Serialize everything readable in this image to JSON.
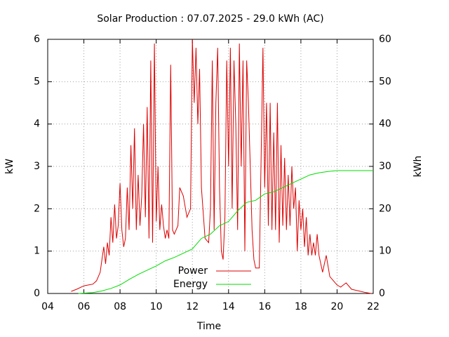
{
  "chart_data": {
    "type": "line",
    "title": "Solar Production : 07.07.2025 - 29.0 kWh (AC)",
    "xlabel": "Time",
    "ylabel": "kW",
    "y2label": "kWh",
    "xlim": [
      4,
      22
    ],
    "xticks": [
      {
        "value": 4,
        "label": "04"
      },
      {
        "value": 6,
        "label": "06"
      },
      {
        "value": 8,
        "label": "08"
      },
      10,
      12,
      14,
      16,
      18,
      20,
      22
    ],
    "ylim": [
      0,
      6
    ],
    "yticks": [
      0,
      1,
      2,
      3,
      4,
      5,
      6
    ],
    "y2lim": [
      0,
      60
    ],
    "y2ticks": [
      0,
      10,
      20,
      30,
      40,
      50,
      60
    ],
    "grid": true,
    "legend": "bottom",
    "series": [
      {
        "name": "Power",
        "color": "#dd0000",
        "x": [
          5.3,
          5.6,
          6.0,
          6.5,
          6.7,
          6.9,
          7.0,
          7.1,
          7.2,
          7.3,
          7.4,
          7.5,
          7.6,
          7.7,
          7.8,
          7.9,
          8.0,
          8.1,
          8.2,
          8.3,
          8.4,
          8.5,
          8.6,
          8.7,
          8.8,
          8.9,
          9.0,
          9.1,
          9.2,
          9.3,
          9.4,
          9.5,
          9.6,
          9.7,
          9.8,
          9.9,
          10.0,
          10.1,
          10.2,
          10.3,
          10.4,
          10.5,
          10.6,
          10.7,
          10.8,
          10.9,
          11.0,
          11.2,
          11.3,
          11.5,
          11.7,
          11.9,
          12.0,
          12.1,
          12.2,
          12.3,
          12.4,
          12.5,
          12.7,
          12.9,
          13.0,
          13.1,
          13.2,
          13.3,
          13.4,
          13.5,
          13.6,
          13.7,
          13.8,
          13.9,
          14.0,
          14.1,
          14.2,
          14.3,
          14.4,
          14.5,
          14.6,
          14.7,
          14.8,
          14.9,
          15.0,
          15.1,
          15.3,
          15.4,
          15.5,
          15.7,
          15.9,
          16.0,
          16.1,
          16.2,
          16.3,
          16.4,
          16.5,
          16.6,
          16.7,
          16.8,
          16.9,
          17.0,
          17.1,
          17.2,
          17.3,
          17.4,
          17.5,
          17.6,
          17.7,
          17.8,
          17.9,
          18.0,
          18.1,
          18.2,
          18.3,
          18.4,
          18.5,
          18.6,
          18.7,
          18.8,
          18.9,
          19.0,
          19.2,
          19.4,
          19.6,
          19.8,
          20.0,
          20.2,
          20.5,
          20.8,
          21.2,
          21.6,
          21.9
        ],
        "values": [
          0.05,
          0.1,
          0.18,
          0.22,
          0.3,
          0.5,
          0.8,
          1.1,
          0.7,
          1.2,
          0.9,
          1.8,
          1.2,
          2.1,
          1.3,
          1.6,
          2.6,
          1.5,
          1.1,
          1.3,
          2.5,
          1.5,
          3.5,
          2.0,
          3.9,
          1.5,
          2.8,
          1.6,
          2.3,
          4.0,
          1.8,
          4.4,
          1.3,
          5.5,
          1.2,
          5.9,
          1.7,
          3.0,
          1.5,
          2.1,
          1.6,
          1.3,
          1.5,
          1.3,
          5.4,
          1.5,
          1.4,
          1.6,
          2.5,
          2.3,
          1.8,
          2.0,
          6.0,
          4.5,
          5.8,
          4.0,
          5.3,
          2.5,
          1.3,
          1.2,
          2.0,
          5.5,
          1.5,
          4.5,
          5.8,
          2.5,
          1.0,
          0.8,
          1.8,
          5.5,
          3.0,
          5.8,
          2.0,
          5.5,
          4.0,
          1.5,
          5.9,
          3.0,
          5.5,
          1.0,
          5.5,
          4.5,
          1.5,
          0.8,
          0.6,
          0.6,
          5.8,
          2.5,
          4.5,
          1.6,
          4.5,
          1.5,
          3.8,
          1.5,
          4.5,
          1.2,
          3.5,
          1.6,
          3.2,
          1.5,
          2.8,
          1.6,
          3.0,
          2.0,
          2.5,
          1.0,
          2.2,
          1.5,
          2.0,
          1.1,
          1.8,
          0.9,
          1.4,
          0.9,
          1.2,
          0.9,
          1.4,
          0.9,
          0.5,
          0.9,
          0.4,
          0.3,
          0.2,
          0.15,
          0.25,
          0.1,
          0.06,
          0.02,
          0.0
        ]
      },
      {
        "name": "Energy",
        "color": "#00dd00",
        "axis": "y2",
        "x": [
          5.7,
          6.5,
          7.0,
          7.5,
          8.0,
          8.5,
          9.0,
          9.5,
          10.0,
          10.5,
          11.0,
          11.5,
          12.0,
          12.5,
          13.0,
          13.5,
          14.0,
          14.5,
          15.0,
          15.5,
          16.0,
          16.5,
          17.0,
          17.5,
          18.0,
          18.5,
          19.0,
          19.5,
          20.0,
          22.0
        ],
        "values": [
          0,
          0.2,
          0.6,
          1.2,
          2,
          3.3,
          4.5,
          5.5,
          6.5,
          7.7,
          8.5,
          9.5,
          10.5,
          13,
          14,
          16,
          17,
          19.5,
          21.5,
          22,
          23.5,
          24,
          25,
          26,
          27,
          28,
          28.5,
          28.8,
          29,
          29
        ]
      }
    ]
  }
}
